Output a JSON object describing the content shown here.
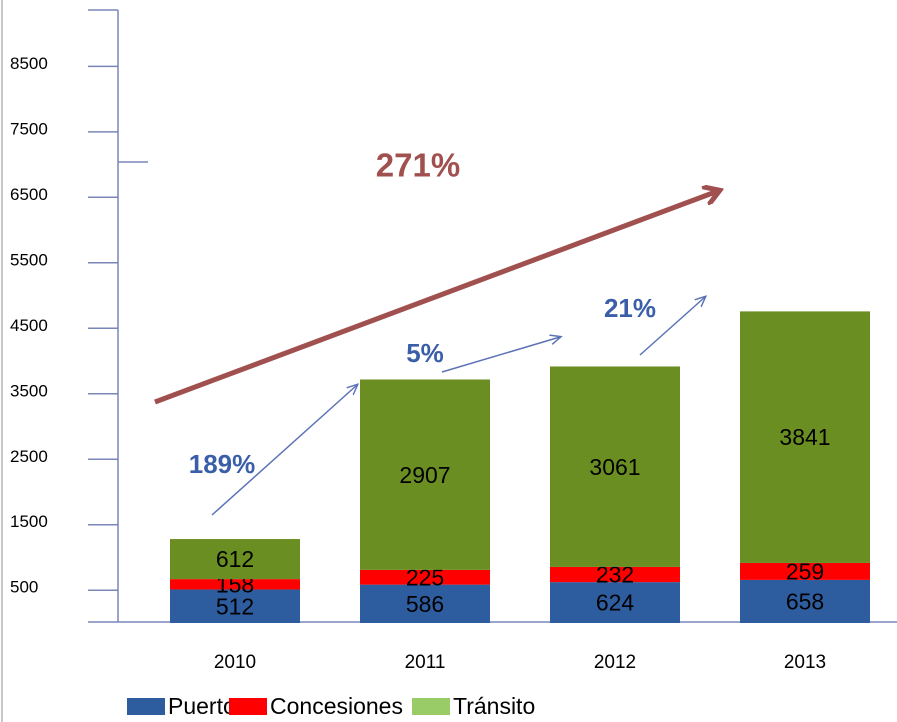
{
  "chart_data": {
    "type": "stacked_bar",
    "categories": [
      "2010",
      "2011",
      "2012",
      "2013"
    ],
    "series": [
      {
        "name": "Puertos",
        "color": "#2e5d9f",
        "values": [
          512,
          586,
          624,
          658
        ]
      },
      {
        "name": "Concesiones",
        "color": "#ff0000",
        "values": [
          158,
          225,
          232,
          259
        ]
      },
      {
        "name": "Tránsito",
        "color": "#6b8e23",
        "legend_color": "#99cc66",
        "values": [
          612,
          2907,
          3061,
          3841
        ]
      }
    ],
    "ylim": [
      0,
      9360
    ],
    "yticks": [
      500,
      1500,
      2500,
      3500,
      4500,
      5500,
      6500,
      7500,
      8500
    ],
    "annotations": [
      "271%",
      "189%",
      "5%",
      "21%"
    ]
  }
}
